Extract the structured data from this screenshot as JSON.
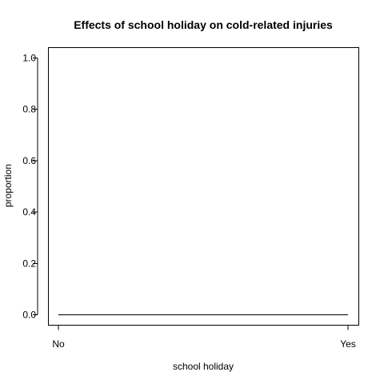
{
  "chart_data": {
    "type": "line",
    "title": "Effects of school holiday on cold-related injuries",
    "xlabel": "school holiday",
    "ylabel": "proportion",
    "categories": [
      "No",
      "Yes"
    ],
    "series": [
      {
        "values": [
          0.0,
          0.0
        ]
      }
    ],
    "ylim": [
      0,
      1
    ],
    "yticks": [
      "0.0",
      "0.2",
      "0.4",
      "0.6",
      "0.8",
      "1.0"
    ],
    "yticks_values": [
      0,
      0.2,
      0.4,
      0.6,
      0.8,
      1.0
    ],
    "grid": false,
    "legend": "none",
    "line_color": "#000000"
  }
}
